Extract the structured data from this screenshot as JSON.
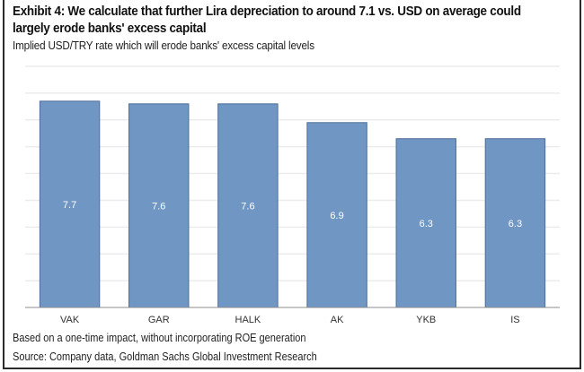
{
  "header": {
    "title": "Exhibit 4: We calculate that further Lira depreciation to around 7.1 vs. USD on average could largely erode banks' excess capital",
    "subtitle": "Implied USD/TRY rate which will erode banks' excess capital levels"
  },
  "footer": {
    "note": "Based on a one-time impact, without incorporating ROE generation",
    "source": "Source: Company data, Goldman Sachs Global Investment Research"
  },
  "colors": {
    "bar_fill": "#7096c4",
    "bar_stroke": "#4f6f99",
    "label_text": "#ffffff",
    "grid": "#ececec",
    "axis": "#8c8c8c"
  },
  "chart_data": {
    "type": "bar",
    "title": "Implied USD/TRY rate which will erode banks' excess capital levels",
    "xlabel": "",
    "ylabel": "",
    "categories": [
      "VAK",
      "GAR",
      "HALK",
      "AK",
      "YKB",
      "IS"
    ],
    "values": [
      7.7,
      7.6,
      7.6,
      6.9,
      6.3,
      6.3
    ],
    "data_labels": [
      "7.7",
      "7.6",
      "7.6",
      "6.9",
      "6.3",
      "6.3"
    ],
    "ylim": [
      0,
      9
    ],
    "grid": true,
    "y_tick_labels_visible": false,
    "legend": "none"
  }
}
